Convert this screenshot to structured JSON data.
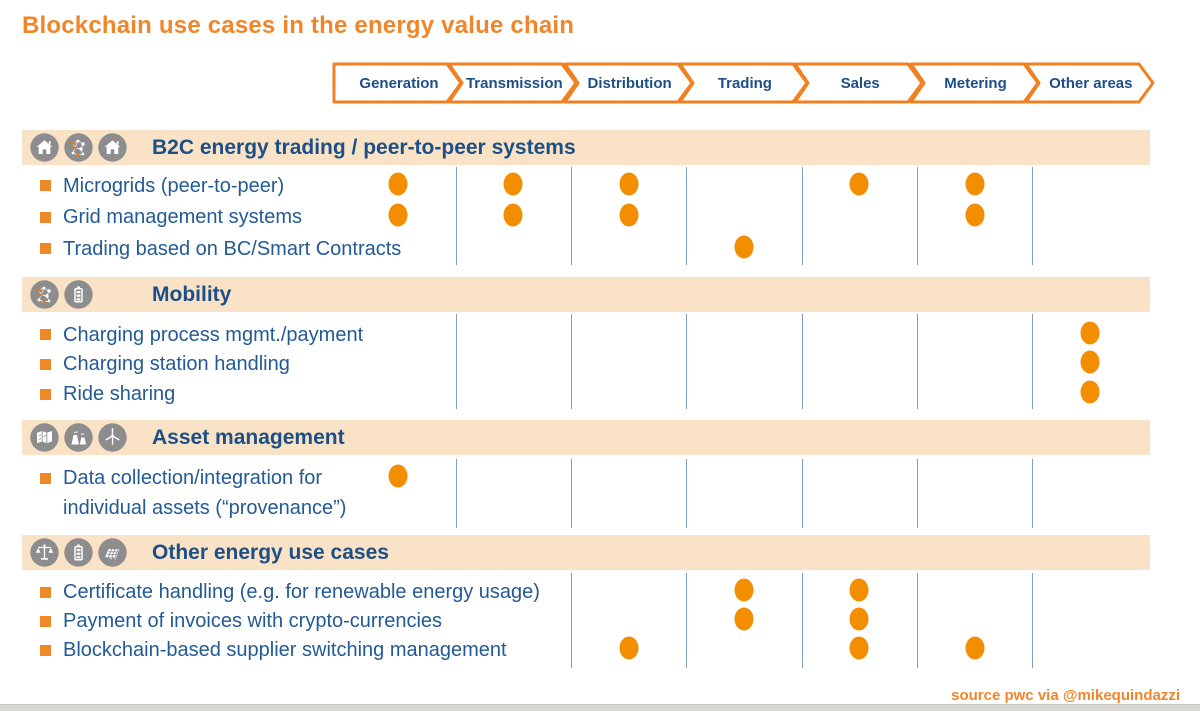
{
  "title": "Blockchain use cases in the energy value chain",
  "source_credit": "source pwc via @mikequindazzi",
  "colors": {
    "title_orange": "#F0862B",
    "arrow_border_orange": "#F08122",
    "dot_orange": "#F28E00",
    "bullet_orange": "#EF8829",
    "text_blue": "#235A96",
    "heading_blue": "#1D4F87",
    "band_background": "#FAE2C6",
    "icon_circle_gray": "#8D8D8D",
    "grid_line_blue": "#7F9FC2",
    "bottom_bar_gray": "#D9D7D4"
  },
  "chart_data": {
    "type": "table",
    "title": "Blockchain use cases in the energy value chain",
    "columns": [
      "Generation",
      "Transmission",
      "Distribution",
      "Trading",
      "Sales",
      "Metering",
      "Other areas"
    ],
    "mark_symbol": "orange-dot",
    "sections": [
      {
        "label": "B2C energy trading / peer-to-peer systems",
        "icons": [
          "house-icon",
          "network-icon",
          "house-icon"
        ],
        "rows": [
          {
            "label": "Microgrids (peer-to-peer)",
            "marks": [
              "Generation",
              "Transmission",
              "Distribution",
              "Sales",
              "Metering"
            ]
          },
          {
            "label": "Grid management systems",
            "marks": [
              "Generation",
              "Transmission",
              "Distribution",
              "Metering"
            ]
          },
          {
            "label": "Trading based on BC/Smart Contracts",
            "marks": [
              "Trading"
            ]
          }
        ]
      },
      {
        "label": "Mobility",
        "icons": [
          "network-icon",
          "battery-icon"
        ],
        "rows": [
          {
            "label": "Charging process mgmt./payment",
            "marks": [
              "Other areas"
            ]
          },
          {
            "label": "Charging station handling",
            "marks": [
              "Other areas"
            ]
          },
          {
            "label": "Ride sharing",
            "marks": [
              "Other areas"
            ]
          }
        ]
      },
      {
        "label": "Asset management",
        "icons": [
          "map-icon",
          "power-plant-icon",
          "wind-turbine-icon"
        ],
        "rows": [
          {
            "label": "Data collection/integration for individual assets (“provenance”)",
            "label_lines": [
              "Data collection/integration for",
              "individual assets (“provenance”)"
            ],
            "marks": [
              "Generation"
            ]
          }
        ]
      },
      {
        "label": "Other energy use cases",
        "icons": [
          "scales-icon",
          "battery-icon",
          "solar-panel-icon"
        ],
        "rows": [
          {
            "label": "Certificate handling (e.g. for renewable energy usage)",
            "marks": [
              "Trading",
              "Sales"
            ]
          },
          {
            "label": "Payment of invoices with crypto-currencies",
            "marks": [
              "Trading",
              "Sales"
            ]
          },
          {
            "label": "Blockchain-based supplier switching management",
            "marks": [
              "Distribution",
              "Sales",
              "Metering"
            ]
          }
        ]
      }
    ]
  }
}
